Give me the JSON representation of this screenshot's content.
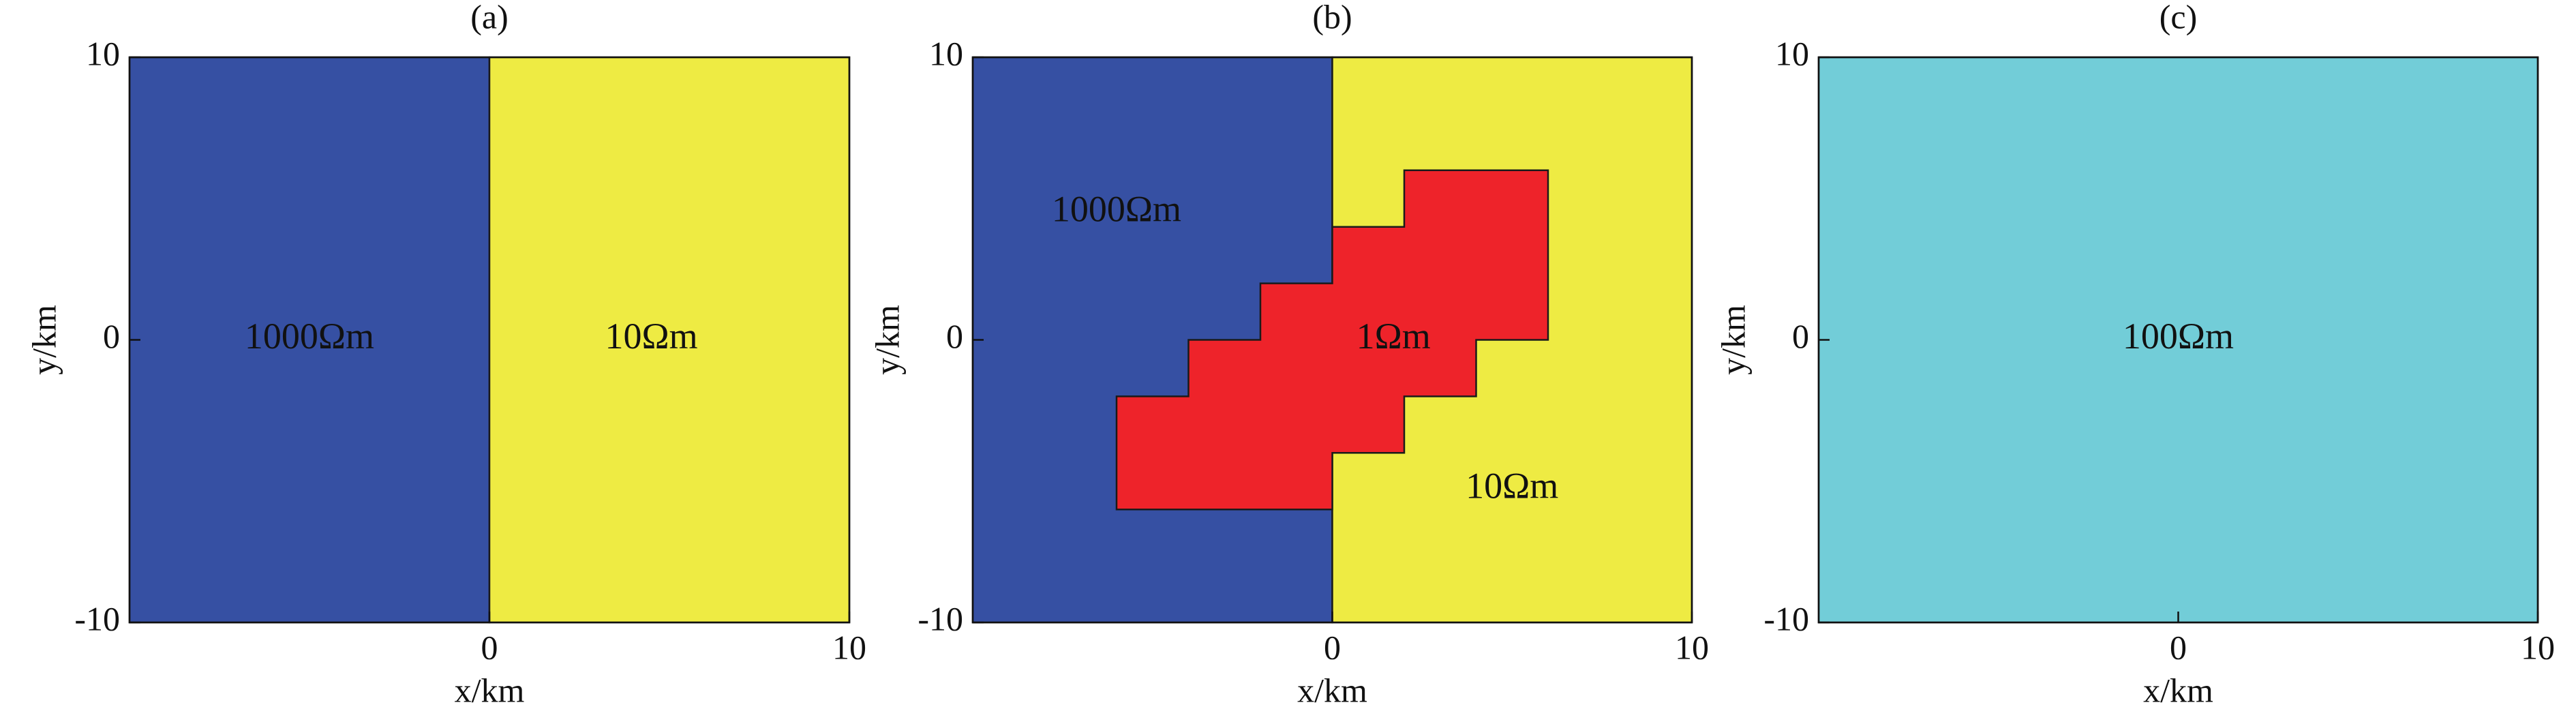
{
  "chart_data": [
    {
      "type": "region",
      "title": "(a)",
      "xlabel": "x/km",
      "ylabel": "y/km",
      "xlim": [
        -10,
        10
      ],
      "ylim": [
        -10,
        10
      ],
      "xticks": [
        0,
        10
      ],
      "yticks": [
        -10,
        0,
        10
      ],
      "regions": [
        {
          "label": "1000Ωm",
          "color": "#3650a3",
          "x": [
            -10,
            0,
            0,
            -10
          ],
          "y": [
            -10,
            -10,
            10,
            10
          ]
        },
        {
          "label": "10Ωm",
          "color": "#eeeb43",
          "x": [
            0,
            10,
            10,
            0
          ],
          "y": [
            -10,
            -10,
            10,
            10
          ]
        }
      ]
    },
    {
      "type": "region",
      "title": "(b)",
      "xlabel": "x/km",
      "ylabel": "y/km",
      "xlim": [
        -10,
        10
      ],
      "ylim": [
        -10,
        10
      ],
      "xticks": [
        0,
        10
      ],
      "yticks": [
        -10,
        0,
        10
      ],
      "regions": [
        {
          "label": "1000Ωm",
          "color": "#3650a3",
          "x": [
            -10,
            0,
            0,
            -10
          ],
          "y": [
            -10,
            -10,
            10,
            10
          ]
        },
        {
          "label": "10Ωm",
          "color": "#eeeb43",
          "x": [
            0,
            10,
            10,
            0
          ],
          "y": [
            -10,
            -10,
            10,
            10
          ]
        },
        {
          "label": "1Ωm",
          "color": "#ee232a",
          "x": [
            2,
            6,
            6,
            4,
            4,
            2,
            2,
            0,
            0,
            -6,
            -6,
            -4,
            -4,
            -2,
            -2,
            0,
            0,
            2
          ],
          "y": [
            6,
            6,
            0,
            0,
            -2,
            -2,
            -4,
            -4,
            -6,
            -6,
            -2,
            -2,
            0,
            0,
            2,
            2,
            4,
            4
          ]
        }
      ]
    },
    {
      "type": "region",
      "title": "(c)",
      "xlabel": "x/km",
      "ylabel": "y/km",
      "xlim": [
        -10,
        10
      ],
      "ylim": [
        -10,
        10
      ],
      "xticks": [
        0,
        10
      ],
      "yticks": [
        -10,
        0,
        10
      ],
      "regions": [
        {
          "label": "100Ωm",
          "color": "#72cdd8",
          "x": [
            -10,
            10,
            10,
            -10
          ],
          "y": [
            -10,
            -10,
            10,
            10
          ]
        }
      ]
    }
  ]
}
